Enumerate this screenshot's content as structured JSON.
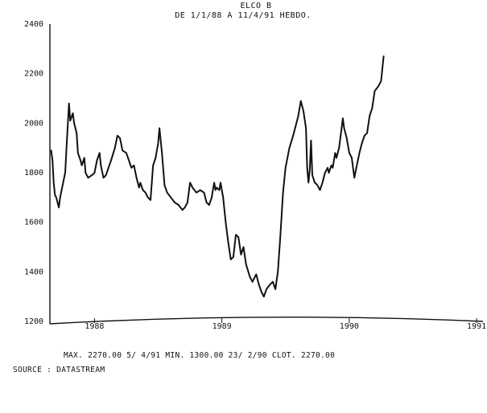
{
  "chart_data": {
    "type": "line",
    "title": "ELCO B",
    "subtitle": "DE 1/1/88 A 11/4/91 HEBDO.",
    "xlabel": "",
    "ylabel": "",
    "ylim": [
      1200,
      2400
    ],
    "xlim": [
      1987.65,
      1991.05
    ],
    "yticks": [
      1200,
      1400,
      1600,
      1800,
      2000,
      2200,
      2400
    ],
    "yticklabels": [
      "1200",
      "1400",
      "1600",
      "1800",
      "2000",
      "2200",
      "2400"
    ],
    "xticks": [
      1988,
      1989,
      1990,
      1991
    ],
    "xticklabels": [
      "1988",
      "1989",
      "1990",
      "1991"
    ],
    "grid": false,
    "series": [
      {
        "values": [
          [
            1987.66,
            1890
          ],
          [
            1987.67,
            1850
          ],
          [
            1987.68,
            1760
          ],
          [
            1987.69,
            1710
          ],
          [
            1987.7,
            1700
          ],
          [
            1987.72,
            1660
          ],
          [
            1987.73,
            1700
          ],
          [
            1987.75,
            1750
          ],
          [
            1987.77,
            1800
          ],
          [
            1987.78,
            1900
          ],
          [
            1987.8,
            2080
          ],
          [
            1987.81,
            2010
          ],
          [
            1987.83,
            2040
          ],
          [
            1987.84,
            2000
          ],
          [
            1987.86,
            1960
          ],
          [
            1987.87,
            1880
          ],
          [
            1987.89,
            1850
          ],
          [
            1987.9,
            1830
          ],
          [
            1987.92,
            1860
          ],
          [
            1987.93,
            1800
          ],
          [
            1987.95,
            1780
          ],
          [
            1987.98,
            1790
          ],
          [
            1988.0,
            1800
          ],
          [
            1988.02,
            1850
          ],
          [
            1988.04,
            1880
          ],
          [
            1988.05,
            1830
          ],
          [
            1988.07,
            1780
          ],
          [
            1988.09,
            1790
          ],
          [
            1988.11,
            1820
          ],
          [
            1988.13,
            1850
          ],
          [
            1988.16,
            1900
          ],
          [
            1988.18,
            1950
          ],
          [
            1988.2,
            1940
          ],
          [
            1988.22,
            1890
          ],
          [
            1988.25,
            1880
          ],
          [
            1988.27,
            1850
          ],
          [
            1988.29,
            1820
          ],
          [
            1988.31,
            1830
          ],
          [
            1988.33,
            1780
          ],
          [
            1988.35,
            1740
          ],
          [
            1988.36,
            1760
          ],
          [
            1988.38,
            1730
          ],
          [
            1988.4,
            1720
          ],
          [
            1988.42,
            1700
          ],
          [
            1988.44,
            1690
          ],
          [
            1988.45,
            1760
          ],
          [
            1988.46,
            1830
          ],
          [
            1988.48,
            1860
          ],
          [
            1988.5,
            1920
          ],
          [
            1988.51,
            1980
          ],
          [
            1988.53,
            1880
          ],
          [
            1988.55,
            1750
          ],
          [
            1988.57,
            1720
          ],
          [
            1988.6,
            1700
          ],
          [
            1988.63,
            1680
          ],
          [
            1988.66,
            1670
          ],
          [
            1988.69,
            1650
          ],
          [
            1988.71,
            1660
          ],
          [
            1988.73,
            1680
          ],
          [
            1988.75,
            1760
          ],
          [
            1988.77,
            1740
          ],
          [
            1988.8,
            1720
          ],
          [
            1988.83,
            1730
          ],
          [
            1988.86,
            1720
          ],
          [
            1988.88,
            1680
          ],
          [
            1988.9,
            1670
          ],
          [
            1988.92,
            1700
          ],
          [
            1988.93,
            1730
          ],
          [
            1988.94,
            1760
          ],
          [
            1988.95,
            1730
          ],
          [
            1988.96,
            1740
          ],
          [
            1988.98,
            1730
          ],
          [
            1988.99,
            1760
          ],
          [
            1989.01,
            1700
          ],
          [
            1989.03,
            1600
          ],
          [
            1989.05,
            1520
          ],
          [
            1989.07,
            1450
          ],
          [
            1989.09,
            1460
          ],
          [
            1989.11,
            1550
          ],
          [
            1989.13,
            1540
          ],
          [
            1989.15,
            1470
          ],
          [
            1989.17,
            1500
          ],
          [
            1989.19,
            1430
          ],
          [
            1989.22,
            1380
          ],
          [
            1989.24,
            1360
          ],
          [
            1989.27,
            1390
          ],
          [
            1989.29,
            1350
          ],
          [
            1989.31,
            1320
          ],
          [
            1989.33,
            1300
          ],
          [
            1989.35,
            1330
          ],
          [
            1989.38,
            1350
          ],
          [
            1989.4,
            1360
          ],
          [
            1989.42,
            1330
          ],
          [
            1989.44,
            1400
          ],
          [
            1989.46,
            1550
          ],
          [
            1989.48,
            1720
          ],
          [
            1989.5,
            1820
          ],
          [
            1989.53,
            1900
          ],
          [
            1989.56,
            1950
          ],
          [
            1989.6,
            2030
          ],
          [
            1989.62,
            2090
          ],
          [
            1989.64,
            2050
          ],
          [
            1989.66,
            1980
          ],
          [
            1989.67,
            1820
          ],
          [
            1989.68,
            1760
          ],
          [
            1989.69,
            1810
          ],
          [
            1989.7,
            1930
          ],
          [
            1989.71,
            1790
          ],
          [
            1989.73,
            1760
          ],
          [
            1989.75,
            1750
          ],
          [
            1989.77,
            1730
          ],
          [
            1989.79,
            1760
          ],
          [
            1989.81,
            1800
          ],
          [
            1989.83,
            1820
          ],
          [
            1989.84,
            1800
          ],
          [
            1989.86,
            1830
          ],
          [
            1989.87,
            1820
          ],
          [
            1989.89,
            1880
          ],
          [
            1989.9,
            1860
          ],
          [
            1989.92,
            1900
          ],
          [
            1989.93,
            1940
          ],
          [
            1989.94,
            1980
          ],
          [
            1989.95,
            2020
          ],
          [
            1989.96,
            1980
          ],
          [
            1989.98,
            1940
          ],
          [
            1990.0,
            1880
          ],
          [
            1990.02,
            1860
          ],
          [
            1990.04,
            1780
          ],
          [
            1990.06,
            1830
          ],
          [
            1990.08,
            1880
          ],
          [
            1990.1,
            1920
          ],
          [
            1990.12,
            1950
          ],
          [
            1990.14,
            1960
          ],
          [
            1990.16,
            2030
          ],
          [
            1990.18,
            2060
          ],
          [
            1990.2,
            2130
          ],
          [
            1990.23,
            2150
          ],
          [
            1990.25,
            2170
          ],
          [
            1990.27,
            2270
          ]
        ]
      }
    ]
  },
  "footer": {
    "stats": "MAX. 2270.00   5/ 4/91  MIN.  1300.00  23/ 2/90  CLOT.  2270.00",
    "source": "SOURCE : DATASTREAM"
  }
}
